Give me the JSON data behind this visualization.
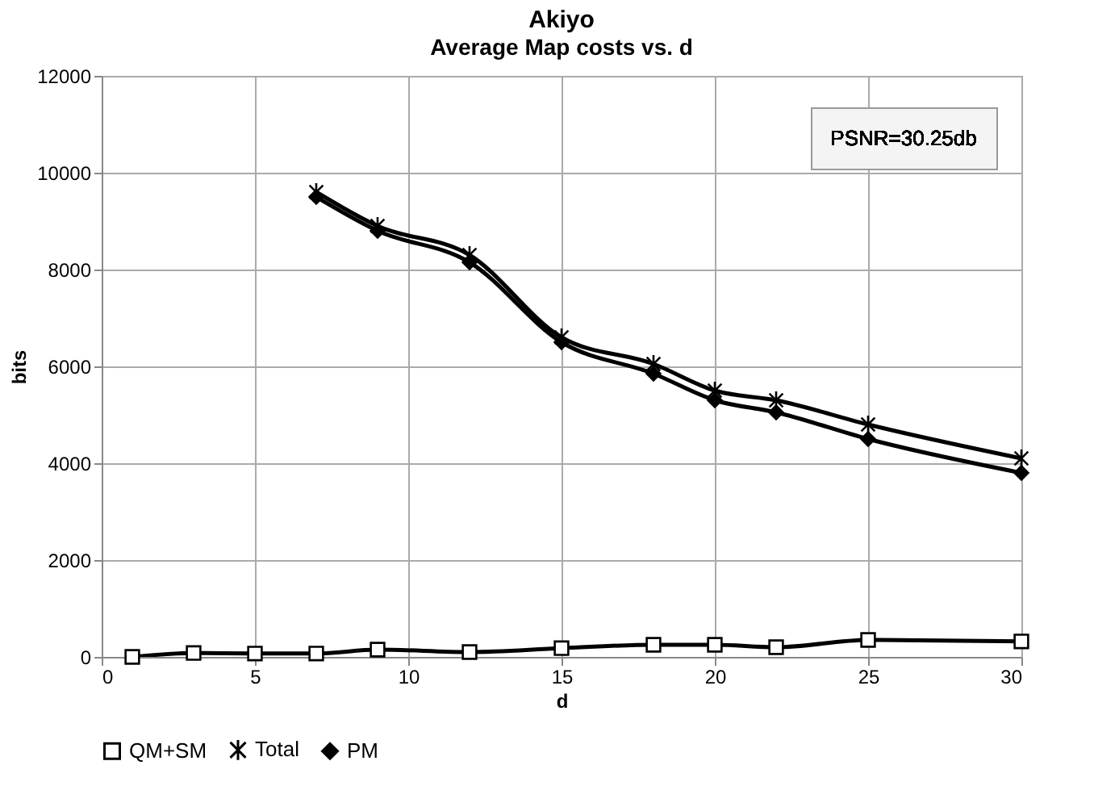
{
  "chart_data": {
    "type": "line",
    "title": "Akiyo",
    "subtitle": "Average Map costs vs. d",
    "xlabel": "d",
    "ylabel": "bits",
    "x": [
      1,
      3,
      5,
      7,
      9,
      12,
      15,
      18,
      20,
      22,
      25,
      30
    ],
    "series": [
      {
        "name": "QM+SM",
        "color": "#000000",
        "marker": "square",
        "values": [
          0,
          80,
          70,
          70,
          150,
          100,
          180,
          250,
          250,
          200,
          350,
          320
        ]
      },
      {
        "name": "Total",
        "color": "#000000",
        "marker": "cross",
        "values": [
          null,
          null,
          null,
          9600,
          8900,
          8300,
          6600,
          6050,
          5500,
          5300,
          4800,
          4100
        ]
      },
      {
        "name": "PM",
        "color": "#000000",
        "marker": "diamond",
        "values": [
          null,
          null,
          null,
          9500,
          8800,
          8150,
          6500,
          5850,
          5300,
          5050,
          4500,
          3800
        ]
      }
    ],
    "xlim": [
      0,
      30
    ],
    "xticks": [
      0,
      5,
      10,
      15,
      20,
      25,
      30
    ],
    "ylim": [
      0,
      12000
    ],
    "yticks": [
      0,
      2000,
      4000,
      6000,
      8000,
      10000,
      12000
    ],
    "grid": true,
    "legend": "bottom",
    "annotations": [
      "PSNR=30.25db"
    ]
  }
}
